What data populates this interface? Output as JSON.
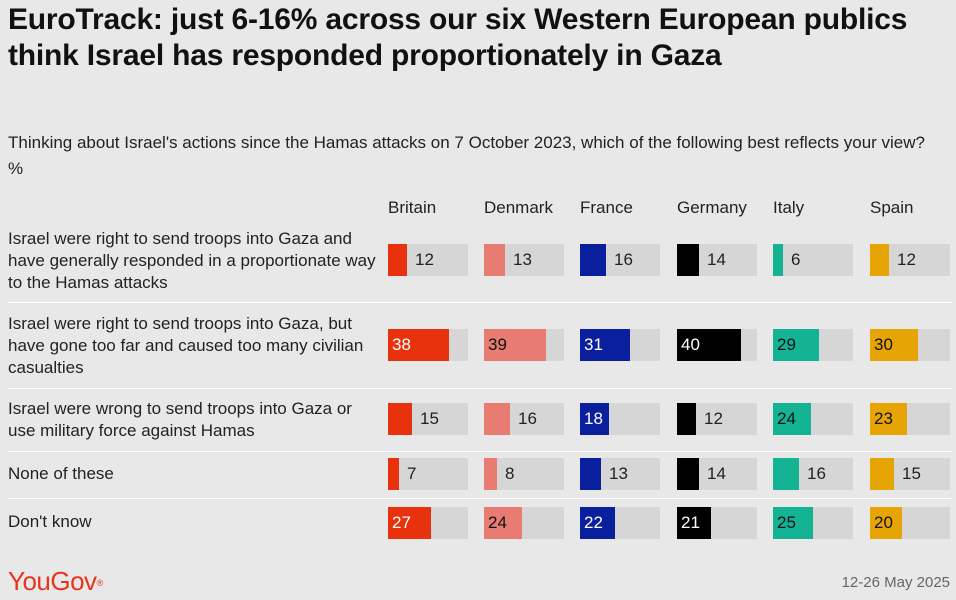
{
  "title": "EuroTrack: just 6-16% across our six Western European publics think Israel has responded proportionately in Gaza",
  "subtitle": "Thinking about Israel's actions since the Hamas attacks on 7 October 2023, which of the following best reflects your view? %",
  "chart_data": {
    "type": "bar",
    "orientation": "horizontal-small-multiples",
    "unit": "%",
    "xlim": [
      0,
      100
    ],
    "categories": [
      "Israel were right to send troops into Gaza and have generally responded in a proportionate way to the Hamas attacks",
      "Israel were right to send troops into Gaza, but have gone too far and caused too many civilian casualties",
      "Israel were wrong to send troops into Gaza or use military force against Hamas",
      "None of these",
      "Don't know"
    ],
    "series": [
      {
        "name": "Britain",
        "color": "#e8320e",
        "values": [
          12,
          38,
          15,
          7,
          27
        ]
      },
      {
        "name": "Denmark",
        "color": "#e87b72",
        "values": [
          13,
          39,
          16,
          8,
          24
        ]
      },
      {
        "name": "France",
        "color": "#0a1f9e",
        "values": [
          16,
          31,
          18,
          13,
          22
        ]
      },
      {
        "name": "Germany",
        "color": "#000000",
        "values": [
          14,
          40,
          12,
          14,
          21
        ]
      },
      {
        "name": "Italy",
        "color": "#13b394",
        "values": [
          6,
          29,
          24,
          16,
          25
        ]
      },
      {
        "name": "Spain",
        "color": "#e6a505",
        "values": [
          12,
          30,
          23,
          15,
          20
        ]
      }
    ],
    "value_label_threshold": 18
  },
  "footer": {
    "logo": "YouGov",
    "date": "12-26 May 2025"
  }
}
